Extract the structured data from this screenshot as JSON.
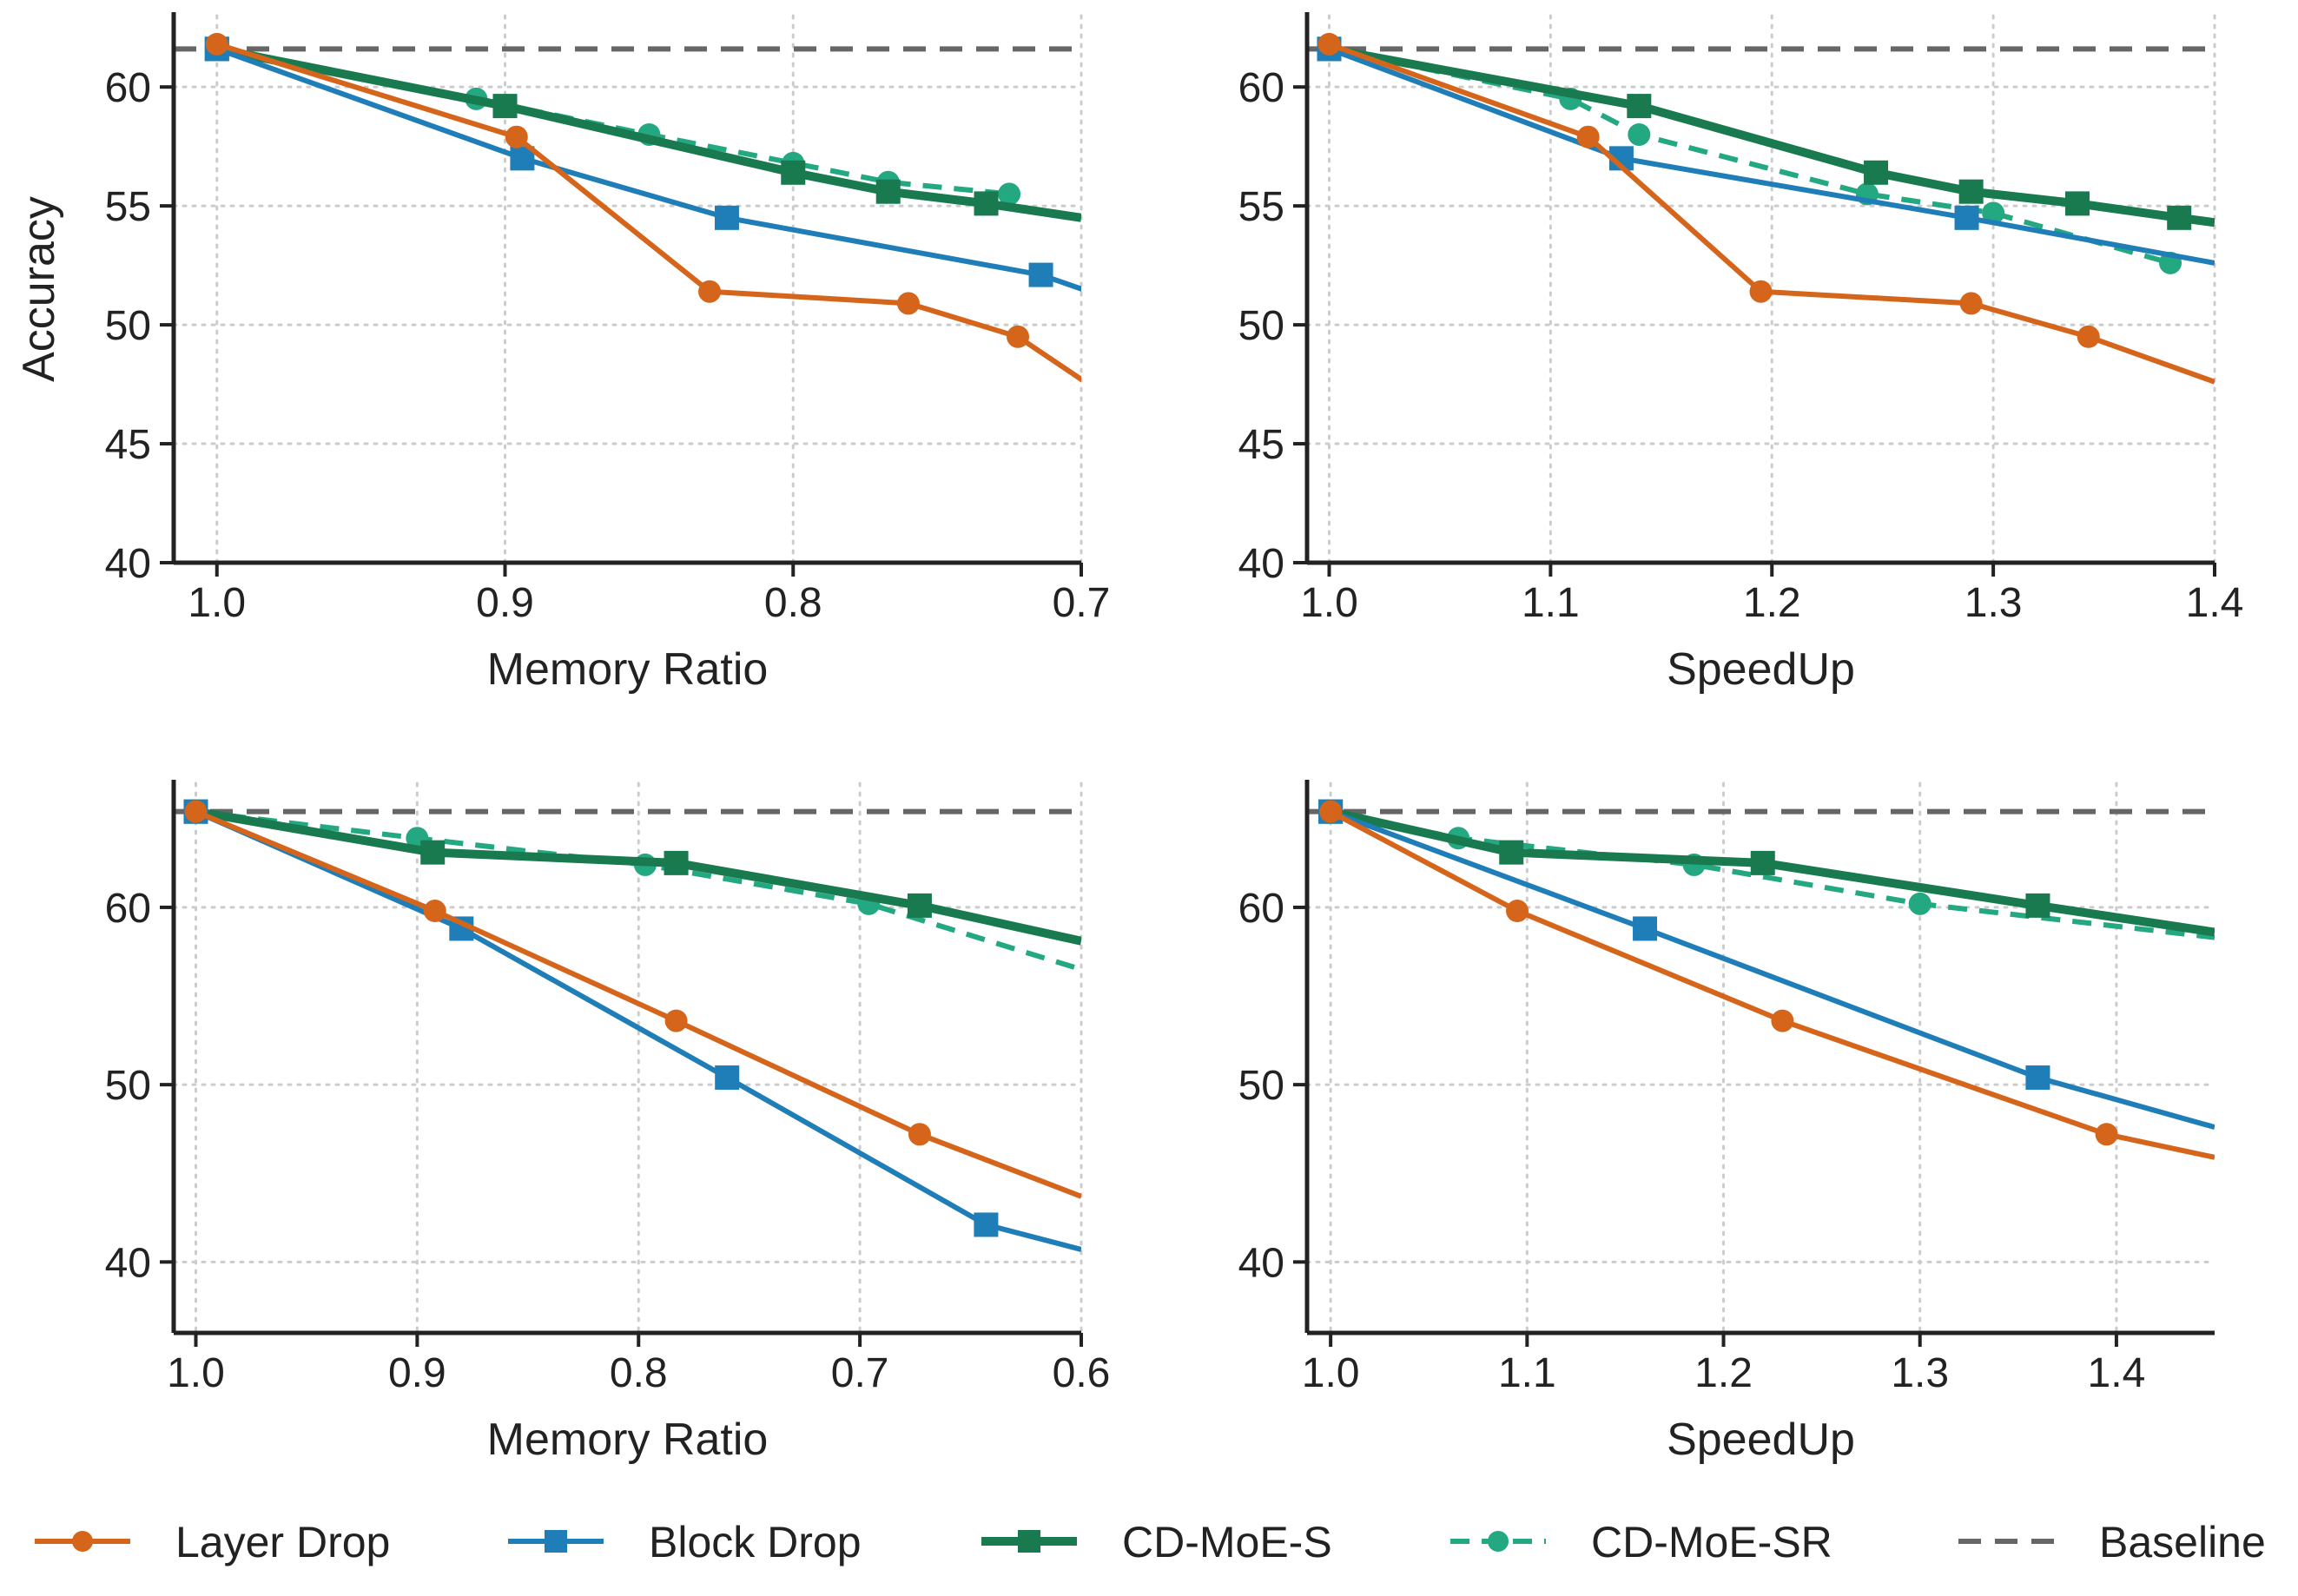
{
  "colors": {
    "layer_drop": "#D6651C",
    "block_drop": "#1F7DB8",
    "cd_moe_s": "#187A4E",
    "cd_moe_sr": "#24A882",
    "baseline": "#666666"
  },
  "legend": [
    {
      "key": "layer_drop",
      "label": "Layer Drop",
      "marker": "circle",
      "dash": false
    },
    {
      "key": "block_drop",
      "label": "Block Drop",
      "marker": "square",
      "dash": false
    },
    {
      "key": "cd_moe_s",
      "label": "CD-MoE-S",
      "marker": "square",
      "dash": false
    },
    {
      "key": "cd_moe_sr",
      "label": "CD-MoE-SR",
      "marker": "circle",
      "dash": true
    },
    {
      "key": "baseline",
      "label": "Baseline",
      "marker": "none",
      "dash": true
    }
  ],
  "chart_data": [
    {
      "type": "line",
      "xlabel": "Memory Ratio",
      "ylabel": "Accuracy",
      "xlim": [
        1.015,
        0.7
      ],
      "ylim": [
        40,
        63
      ],
      "x_reversed": true,
      "xticks": [
        "1.0",
        "0.9",
        "0.8",
        "0.7"
      ],
      "yticks": [
        "40",
        "45",
        "50",
        "55",
        "60"
      ],
      "grid": true,
      "baseline": 61.6,
      "series": [
        {
          "key": "layer_drop",
          "name": "Layer Drop",
          "x": [
            1.0,
            0.896,
            0.829,
            0.76,
            0.722,
            0.695
          ],
          "y": [
            61.8,
            57.9,
            51.4,
            50.9,
            49.5,
            47.3
          ]
        },
        {
          "key": "block_drop",
          "name": "Block Drop",
          "x": [
            1.0,
            0.894,
            0.823,
            0.714,
            0.695
          ],
          "y": [
            61.6,
            57.0,
            54.5,
            52.1,
            51.3
          ]
        },
        {
          "key": "cd_moe_s",
          "name": "CD-MoE-S",
          "x": [
            1.0,
            0.9,
            0.8,
            0.767,
            0.733,
            0.7
          ],
          "y": [
            61.6,
            59.2,
            56.4,
            55.6,
            55.1,
            54.5
          ]
        },
        {
          "key": "cd_moe_sr",
          "name": "CD-MoE-SR",
          "x": [
            1.0,
            0.91,
            0.85,
            0.8,
            0.767,
            0.725
          ],
          "y": [
            61.6,
            59.5,
            58.0,
            56.8,
            56.0,
            55.5
          ]
        }
      ]
    },
    {
      "type": "line",
      "xlabel": "SpeedUp",
      "ylabel": "",
      "xlim": [
        0.99,
        1.4
      ],
      "ylim": [
        40,
        63
      ],
      "x_reversed": false,
      "xticks": [
        "1.0",
        "1.1",
        "1.2",
        "1.3",
        "1.4"
      ],
      "yticks": [
        "40",
        "45",
        "50",
        "55",
        "60"
      ],
      "grid": true,
      "baseline": 61.6,
      "series": [
        {
          "key": "layer_drop",
          "name": "Layer Drop",
          "x": [
            1.0,
            1.117,
            1.195,
            1.29,
            1.343,
            1.4
          ],
          "y": [
            61.8,
            57.9,
            51.4,
            50.9,
            49.5,
            47.6
          ]
        },
        {
          "key": "block_drop",
          "name": "Block Drop",
          "x": [
            1.0,
            1.132,
            1.288,
            1.4
          ],
          "y": [
            61.6,
            57.0,
            54.5,
            52.6
          ]
        },
        {
          "key": "cd_moe_s",
          "name": "CD-MoE-S",
          "x": [
            1.0,
            1.14,
            1.247,
            1.29,
            1.338,
            1.384,
            1.4
          ],
          "y": [
            61.6,
            59.2,
            56.4,
            55.6,
            55.1,
            54.5,
            54.3
          ]
        },
        {
          "key": "cd_moe_sr",
          "name": "CD-MoE-SR",
          "x": [
            1.0,
            1.109,
            1.14,
            1.243,
            1.3,
            1.38
          ],
          "y": [
            61.6,
            59.5,
            58.0,
            55.5,
            54.7,
            52.6
          ]
        }
      ]
    },
    {
      "type": "line",
      "xlabel": "Memory Ratio",
      "ylabel": "",
      "xlim": [
        1.01,
        0.6
      ],
      "ylim": [
        36,
        67
      ],
      "x_reversed": true,
      "xticks": [
        "1.0",
        "0.9",
        "0.8",
        "0.7",
        "0.6"
      ],
      "yticks": [
        "40",
        "50",
        "60"
      ],
      "grid": true,
      "baseline": 65.4,
      "series": [
        {
          "key": "layer_drop",
          "name": "Layer Drop",
          "x": [
            1.0,
            0.892,
            0.783,
            0.673,
            0.6
          ],
          "y": [
            65.4,
            59.8,
            53.6,
            47.2,
            43.7
          ]
        },
        {
          "key": "block_drop",
          "name": "Block Drop",
          "x": [
            1.0,
            0.88,
            0.76,
            0.643,
            0.6
          ],
          "y": [
            65.4,
            58.8,
            50.4,
            42.1,
            40.7
          ]
        },
        {
          "key": "cd_moe_s",
          "name": "CD-MoE-S",
          "x": [
            1.0,
            0.893,
            0.783,
            0.673,
            0.6
          ],
          "y": [
            65.4,
            63.1,
            62.5,
            60.1,
            58.1
          ]
        },
        {
          "key": "cd_moe_sr",
          "name": "CD-MoE-SR",
          "x": [
            1.0,
            0.9,
            0.797,
            0.696,
            0.6
          ],
          "y": [
            65.4,
            63.9,
            62.4,
            60.2,
            56.5
          ]
        }
      ]
    },
    {
      "type": "line",
      "xlabel": "SpeedUp",
      "ylabel": "",
      "xlim": [
        0.988,
        1.45
      ],
      "ylim": [
        36,
        67
      ],
      "x_reversed": false,
      "xticks": [
        "1.0",
        "1.1",
        "1.2",
        "1.3",
        "1.4"
      ],
      "yticks": [
        "40",
        "50",
        "60"
      ],
      "grid": true,
      "baseline": 65.4,
      "series": [
        {
          "key": "layer_drop",
          "name": "Layer Drop",
          "x": [
            1.0,
            1.095,
            1.23,
            1.395,
            1.45
          ],
          "y": [
            65.4,
            59.8,
            53.6,
            47.2,
            45.9
          ]
        },
        {
          "key": "block_drop",
          "name": "Block Drop",
          "x": [
            1.0,
            1.16,
            1.36,
            1.45
          ],
          "y": [
            65.4,
            58.8,
            50.4,
            47.6
          ]
        },
        {
          "key": "cd_moe_s",
          "name": "CD-MoE-S",
          "x": [
            1.0,
            1.092,
            1.22,
            1.36,
            1.45
          ],
          "y": [
            65.4,
            63.1,
            62.5,
            60.1,
            58.6
          ]
        },
        {
          "key": "cd_moe_sr",
          "name": "CD-MoE-SR",
          "x": [
            1.0,
            1.065,
            1.185,
            1.3,
            1.45
          ],
          "y": [
            65.4,
            63.9,
            62.4,
            60.2,
            58.3
          ]
        }
      ]
    }
  ]
}
